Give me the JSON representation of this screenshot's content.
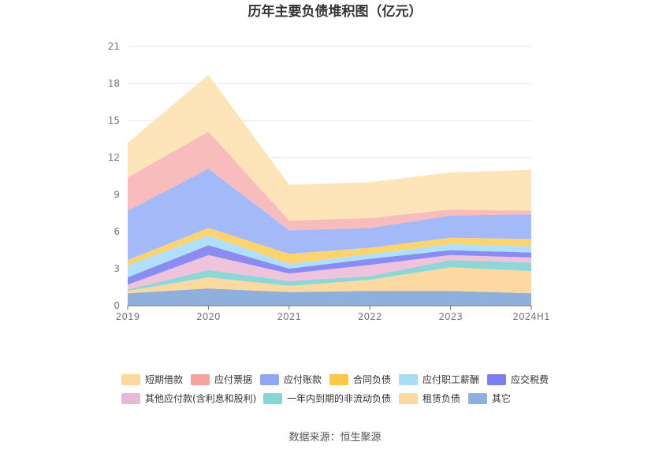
{
  "chart_data": {
    "type": "area",
    "title": "历年主要负债堆积图（亿元）",
    "categories": [
      "2019",
      "2020",
      "2021",
      "2022",
      "2023",
      "2024H1"
    ],
    "y_ticks": [
      "0",
      "3",
      "6",
      "9",
      "12",
      "15",
      "18",
      "21"
    ],
    "ylim": [
      0,
      21
    ],
    "xlabel": "",
    "ylabel": "",
    "grid": true,
    "legend_position": "bottom",
    "stacked": true,
    "series": [
      {
        "name": "其它",
        "color": "#8fb0dc",
        "values": [
          1.0,
          1.4,
          1.1,
          1.2,
          1.2,
          1.0
        ]
      },
      {
        "name": "租赁负债",
        "color": "#fcd9a0",
        "values": [
          0.2,
          0.9,
          0.5,
          0.9,
          1.9,
          1.8
        ]
      },
      {
        "name": "一年内到期的非流动负债",
        "color": "#8ed7d6",
        "values": [
          0.1,
          0.6,
          0.4,
          0.3,
          0.6,
          0.7
        ]
      },
      {
        "name": "其他应付款(含利息和股利)",
        "color": "#f0c3dd",
        "values": [
          0.4,
          1.2,
          0.6,
          0.9,
          0.4,
          0.4
        ]
      },
      {
        "name": "应交税费",
        "color": "#8a8cf0",
        "values": [
          0.6,
          0.8,
          0.4,
          0.5,
          0.4,
          0.4
        ]
      },
      {
        "name": "应付职工薪酬",
        "color": "#afdffa",
        "values": [
          1.0,
          0.8,
          0.4,
          0.4,
          0.5,
          0.5
        ]
      },
      {
        "name": "合同负债",
        "color": "#fcd36c",
        "values": [
          0.4,
          0.6,
          0.8,
          0.5,
          0.5,
          0.6
        ]
      },
      {
        "name": "应付账款",
        "color": "#a3b9f8",
        "values": [
          4.0,
          4.8,
          1.9,
          1.6,
          1.8,
          2.0
        ]
      },
      {
        "name": "应付票据",
        "color": "#f8bcbc",
        "values": [
          2.7,
          3.0,
          0.8,
          0.8,
          0.5,
          0.3
        ]
      },
      {
        "name": "短期借款",
        "color": "#fde5b9",
        "values": [
          2.8,
          4.6,
          2.9,
          2.9,
          3.0,
          3.3
        ]
      }
    ],
    "legend": [
      {
        "name": "短期借款",
        "color": "#fdd9a0"
      },
      {
        "name": "应付票据",
        "color": "#f5a39e"
      },
      {
        "name": "应付账款",
        "color": "#8fa8f5"
      },
      {
        "name": "合同负债",
        "color": "#fbc945"
      },
      {
        "name": "应付职工薪酬",
        "color": "#a8dcf7"
      },
      {
        "name": "应交税费",
        "color": "#7b7ff0"
      },
      {
        "name": "其他应付款(含利息和股利)",
        "color": "#e8b8d8"
      },
      {
        "name": "一年内到期的非流动负债",
        "color": "#88d6d4"
      },
      {
        "name": "租赁负债",
        "color": "#fcd9a0"
      },
      {
        "name": "其它",
        "color": "#8fb0dc"
      }
    ]
  },
  "source": "数据来源：恒生聚源"
}
